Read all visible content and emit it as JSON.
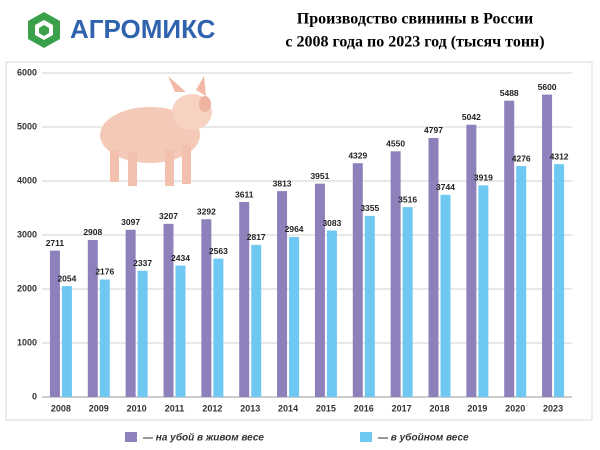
{
  "logo": "АГРОМИКС",
  "chart_data": {
    "type": "bar",
    "title": [
      "Производство свинины в России",
      "с 2008 года по 2023 год (тысяч тонн)"
    ],
    "categories": [
      "2008",
      "2009",
      "2010",
      "2011",
      "2012",
      "2013",
      "2014",
      "2015",
      "2016",
      "2017",
      "2018",
      "2019",
      "2020",
      "2023"
    ],
    "series": [
      {
        "name": "— на убой в живом весе",
        "color": "#8e80bb",
        "values": [
          2711,
          2908,
          3097,
          3207,
          3292,
          3611,
          3813,
          3951,
          4329,
          4550,
          4797,
          5042,
          5488,
          5600
        ]
      },
      {
        "name": "— в убойном весе",
        "color": "#6ec8f2",
        "values": [
          2054,
          2176,
          2337,
          2434,
          2563,
          2817,
          2964,
          3083,
          3355,
          3516,
          3744,
          3919,
          4276,
          4312
        ]
      }
    ],
    "ylim": [
      0,
      6000
    ],
    "yticks": [
      0,
      1000,
      2000,
      3000,
      4000,
      5000,
      6000
    ],
    "grid": true
  }
}
